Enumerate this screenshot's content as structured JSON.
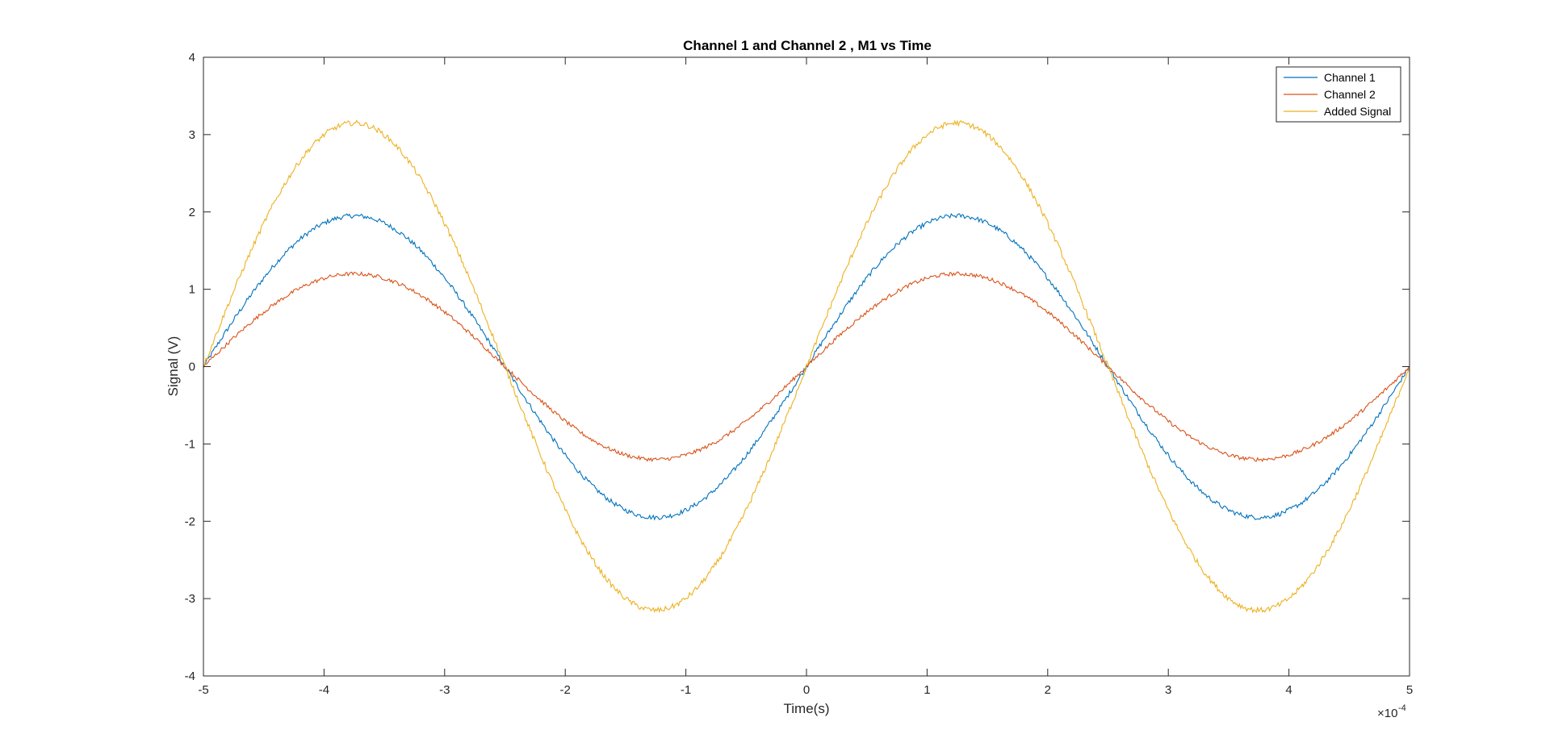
{
  "chart_data": {
    "type": "line",
    "title": "Channel 1 and Channel 2 , M1 vs Time",
    "xlabel": "Time(s)",
    "ylabel": "Signal (V)",
    "x_exponent_label": "×10",
    "x_exponent_power": "-4",
    "xlim": [
      -5,
      5
    ],
    "ylim": [
      -4,
      4
    ],
    "x_ticks": [
      -5,
      -4,
      -3,
      -2,
      -1,
      0,
      1,
      2,
      3,
      4,
      5
    ],
    "x_tick_labels": [
      "-5",
      "-4",
      "-3",
      "-2",
      "-1",
      "0",
      "1",
      "2",
      "3",
      "4",
      "5"
    ],
    "y_ticks": [
      -4,
      -3,
      -2,
      -1,
      0,
      1,
      2,
      3,
      4
    ],
    "y_tick_labels": [
      "-4",
      "-3",
      "-2",
      "-1",
      "0",
      "1",
      "2",
      "3",
      "4"
    ],
    "grid": false,
    "legend_position": "top-right",
    "x_unit_scale": "1e-4",
    "period": 5,
    "series": [
      {
        "name": "Channel 1",
        "color": "#0072BD",
        "amplitude": 1.95,
        "peak_x": 1.25,
        "noise": 0.03,
        "x": [
          -5,
          -3.75,
          -2.5,
          -1.25,
          0,
          1.25,
          2.5,
          3.75,
          5
        ],
        "values": [
          0,
          1.93,
          0,
          -2.0,
          0,
          1.93,
          0,
          -2.0,
          0
        ]
      },
      {
        "name": "Channel 2",
        "color": "#D95319",
        "amplitude": 1.2,
        "peak_x": 1.25,
        "noise": 0.025,
        "x": [
          -5,
          -3.75,
          -2.5,
          -1.25,
          0,
          1.25,
          2.5,
          3.75,
          5
        ],
        "values": [
          0,
          1.21,
          0,
          -1.17,
          0,
          1.21,
          0,
          -1.17,
          0
        ]
      },
      {
        "name": "Added Signal",
        "color": "#EDB120",
        "amplitude": 3.15,
        "peak_x": 1.25,
        "noise": 0.035,
        "x": [
          -5,
          -3.75,
          -2.5,
          -1.25,
          0,
          1.25,
          2.5,
          3.75,
          5
        ],
        "values": [
          0,
          3.14,
          0,
          -3.18,
          0,
          3.14,
          0,
          -3.18,
          0
        ]
      }
    ]
  }
}
